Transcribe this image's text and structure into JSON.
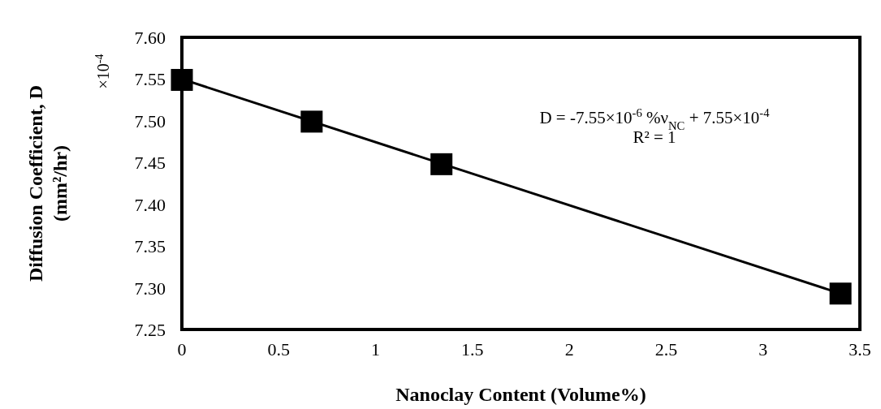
{
  "chart_data": {
    "type": "scatter",
    "xlabel": "Nanoclay Content (Volume%)",
    "ylabel": "Diffusion Coefficient, D\n(mm²/hr)",
    "xlim": [
      0,
      3.5
    ],
    "xticks": [
      0,
      0.5,
      1,
      1.5,
      2,
      2.5,
      3,
      3.5
    ],
    "ylim": [
      7.25,
      7.6
    ],
    "yticks": [
      {
        "value": 7.25,
        "label": "7.25"
      },
      {
        "value": 7.3,
        "label": "7.30"
      },
      {
        "value": 7.35,
        "label": "7.35"
      },
      {
        "value": 7.4,
        "label": "7.40"
      },
      {
        "value": 7.45,
        "label": "7.45"
      },
      {
        "value": 7.5,
        "label": "7.50"
      },
      {
        "value": 7.55,
        "label": "7.55"
      },
      {
        "value": 7.6,
        "label": "7.60"
      }
    ],
    "series": [
      {
        "marker": "square",
        "color": "#000000",
        "x": [
          0,
          0.67,
          1.34,
          3.4
        ],
        "values": [
          7.549,
          7.499,
          7.448,
          7.293
        ]
      },
      {
        "type": "line",
        "marker": "none",
        "color": "#000000",
        "x": [
          0,
          3.4
        ],
        "values": [
          7.55,
          7.293
        ]
      }
    ],
    "annotations": [
      "×10$^{-4}$",
      "D = -7.55×10$^{-6}$ %ν$_{NC}$ + 7.55×10$^{-4}$",
      "R² = 1"
    ]
  }
}
